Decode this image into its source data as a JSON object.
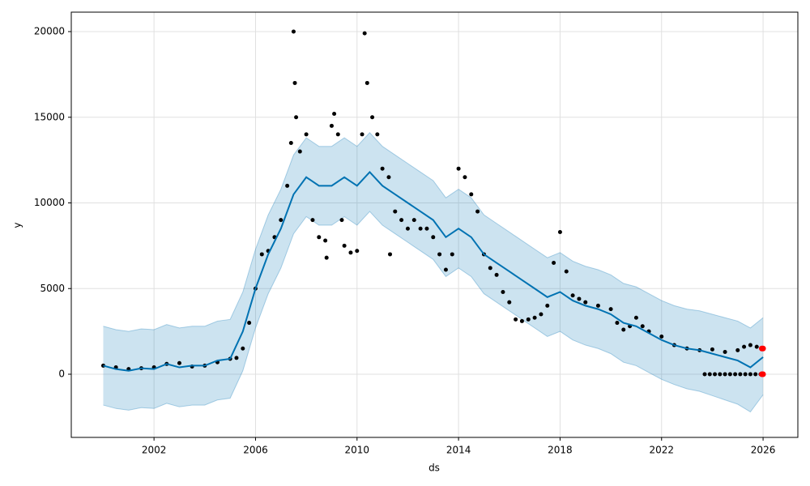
{
  "chart_data": {
    "type": "line",
    "x_label": "ds",
    "y_label": "y",
    "xlim": [
      1998.74,
      2027.37
    ],
    "ylim": [
      -3688,
      21135
    ],
    "xticks": [
      2002,
      2006,
      2010,
      2014,
      2018,
      2022,
      2026
    ],
    "yticks": [
      0,
      5000,
      10000,
      15000,
      20000
    ],
    "grid": true,
    "forecast": {
      "color": "#0072b2",
      "band_color": "#0072b2",
      "x": [
        2000,
        2000.5,
        2001,
        2001.5,
        2002,
        2002.5,
        2003,
        2003.5,
        2004,
        2004.5,
        2005,
        2005.5,
        2006,
        2006.5,
        2007,
        2007.5,
        2008,
        2008.5,
        2009,
        2009.5,
        2010,
        2010.5,
        2011,
        2011.5,
        2012,
        2012.5,
        2013,
        2013.5,
        2014,
        2014.5,
        2015,
        2015.5,
        2016,
        2016.5,
        2017,
        2017.5,
        2018,
        2018.5,
        2019,
        2019.5,
        2020,
        2020.5,
        2021,
        2021.5,
        2022,
        2022.5,
        2023,
        2023.5,
        2024,
        2024.5,
        2025,
        2025.5,
        2026
      ],
      "yhat": [
        500,
        300,
        200,
        350,
        300,
        600,
        400,
        500,
        500,
        800,
        900,
        2500,
        5000,
        7000,
        8500,
        10500,
        11500,
        11000,
        11000,
        11500,
        11000,
        11800,
        11000,
        10500,
        10000,
        9500,
        9000,
        8000,
        8500,
        8000,
        7000,
        6500,
        6000,
        5500,
        5000,
        4500,
        4800,
        4300,
        4000,
        3800,
        3500,
        3000,
        2800,
        2400,
        2000,
        1700,
        1500,
        1400,
        1200,
        1000,
        800,
        400,
        1000
      ],
      "lower": [
        -1800,
        -2000,
        -2100,
        -1950,
        -2000,
        -1700,
        -1900,
        -1800,
        -1800,
        -1500,
        -1400,
        200,
        2700,
        4700,
        6200,
        8200,
        9200,
        8700,
        8700,
        9200,
        8700,
        9500,
        8700,
        8200,
        7700,
        7200,
        6700,
        5700,
        6200,
        5700,
        4700,
        4200,
        3700,
        3200,
        2700,
        2200,
        2500,
        2000,
        1700,
        1500,
        1200,
        700,
        500,
        100,
        -300,
        -600,
        -850,
        -1000,
        -1250,
        -1500,
        -1750,
        -2200,
        -1200
      ],
      "upper": [
        2800,
        2600,
        2500,
        2650,
        2600,
        2900,
        2700,
        2800,
        2800,
        3100,
        3200,
        4800,
        7300,
        9300,
        10800,
        12800,
        13800,
        13300,
        13300,
        13800,
        13300,
        14100,
        13300,
        12800,
        12300,
        11800,
        11300,
        10300,
        10800,
        10300,
        9300,
        8800,
        8300,
        7800,
        7300,
        6800,
        7100,
        6600,
        6300,
        6100,
        5800,
        5300,
        5100,
        4700,
        4300,
        4000,
        3800,
        3700,
        3500,
        3300,
        3100,
        2700,
        3300
      ]
    },
    "observed": {
      "color": "#000000",
      "x": [
        2000,
        2000.5,
        2001,
        2001.5,
        2002,
        2002.5,
        2003,
        2003.5,
        2004,
        2004.5,
        2005,
        2005.25,
        2005.5,
        2005.75,
        2006,
        2006.25,
        2006.5,
        2006.75,
        2007,
        2007.25,
        2007.4,
        2007.5,
        2007.55,
        2007.6,
        2007.75,
        2008,
        2008.25,
        2008.5,
        2008.75,
        2008.8,
        2009,
        2009.1,
        2009.25,
        2009.4,
        2009.5,
        2009.75,
        2010,
        2010.2,
        2010.3,
        2010.4,
        2010.6,
        2010.8,
        2011,
        2011.25,
        2011.3,
        2011.5,
        2011.75,
        2012,
        2012.25,
        2012.5,
        2012.75,
        2013,
        2013.25,
        2013.5,
        2013.75,
        2014,
        2014.25,
        2014.5,
        2014.75,
        2015,
        2015.25,
        2015.5,
        2015.75,
        2016,
        2016.25,
        2016.5,
        2016.75,
        2017,
        2017.25,
        2017.5,
        2017.75,
        2018,
        2018.25,
        2018.5,
        2018.75,
        2019,
        2019.5,
        2020,
        2020.25,
        2020.5,
        2020.75,
        2021,
        2021.25,
        2021.5,
        2022,
        2022.5,
        2023,
        2023.5,
        2024,
        2024.5,
        2025,
        2025.25,
        2025.5,
        2025.75,
        2023.7,
        2023.9,
        2024.1,
        2024.3,
        2024.5,
        2024.7,
        2024.9,
        2025.1,
        2025.3,
        2025.5,
        2025.7,
        2025.9
      ],
      "y": [
        500,
        400,
        300,
        350,
        400,
        600,
        650,
        450,
        500,
        700,
        900,
        950,
        1500,
        3000,
        5000,
        7000,
        7200,
        8000,
        9000,
        11000,
        13500,
        20000,
        17000,
        15000,
        13000,
        14000,
        9000,
        8000,
        7800,
        6800,
        14500,
        15200,
        14000,
        9000,
        7500,
        7100,
        7200,
        14000,
        19900,
        17000,
        15000,
        14000,
        12000,
        11500,
        7000,
        9500,
        9000,
        8500,
        9000,
        8500,
        8500,
        8000,
        7000,
        6100,
        7000,
        12000,
        11500,
        10500,
        9500,
        7000,
        6200,
        5800,
        4800,
        4200,
        3200,
        3100,
        3200,
        3300,
        3500,
        4000,
        6500,
        8300,
        6000,
        4600,
        4400,
        4200,
        4000,
        3800,
        3000,
        2600,
        2800,
        3300,
        2800,
        2500,
        2200,
        1700,
        1500,
        1400,
        1450,
        1300,
        1400,
        1600,
        1700,
        1600,
        0,
        0,
        0,
        0,
        0,
        0,
        0,
        0,
        0,
        0,
        0,
        0
      ]
    },
    "highlighted": {
      "color": "#ff0000",
      "x": [
        2025.95,
        2026,
        2025.95,
        2026
      ],
      "y": [
        1500,
        1500,
        0,
        0
      ]
    }
  }
}
